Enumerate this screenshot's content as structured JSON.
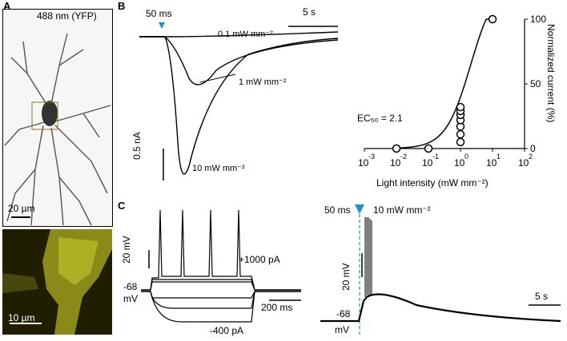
{
  "panelA": {
    "label": "A",
    "channel": "488 nm (YFP)",
    "scale_top": "20 µm",
    "scale_bottom": "10 µm"
  },
  "panelB": {
    "label": "B",
    "pulse": "50 ms",
    "time_scale": "5 s",
    "current_scale": "0.5 nA",
    "trace_labels": [
      "0.1 mW mm⁻²",
      "1 mW mm⁻²",
      "10 mW mm⁻²"
    ],
    "ec50": "EC₅₀ = 2.1"
  },
  "panelC": {
    "label": "C",
    "left": {
      "v_scale": "20 mV",
      "t_scale": "200 ms",
      "rest_value": "-68",
      "rest_unit": "mV",
      "top_step": "+1000 pA",
      "bottom_step": "-400 pA"
    },
    "right": {
      "pulse": "50 ms",
      "intensity": "10 mW mm⁻²",
      "v_scale": "20 mV",
      "t_scale": "5 s",
      "rest_value": "-68",
      "rest_unit": "mV"
    }
  },
  "chart_data": {
    "type": "scatter",
    "xlabel": "Light intensity (mW mm⁻²)",
    "ylabel": "Normalized current (%)",
    "x_scale": "log",
    "xlim": [
      0.001,
      100
    ],
    "ylim": [
      0,
      100
    ],
    "x_ticks": [
      "10⁻³",
      "10⁻²",
      "10⁻¹",
      "10⁰",
      "10¹",
      "10²"
    ],
    "y_ticks": [
      "0",
      "50",
      "100"
    ],
    "points": [
      {
        "x": 0.01,
        "y": 0
      },
      {
        "x": 0.1,
        "y": 0
      },
      {
        "x": 1,
        "y": 5
      },
      {
        "x": 1,
        "y": 11
      },
      {
        "x": 1,
        "y": 17
      },
      {
        "x": 1,
        "y": 22
      },
      {
        "x": 1,
        "y": 26
      },
      {
        "x": 1,
        "y": 29
      },
      {
        "x": 1,
        "y": 32
      },
      {
        "x": 10,
        "y": 100
      }
    ],
    "fit": "Hill",
    "ec50": 2.1
  }
}
